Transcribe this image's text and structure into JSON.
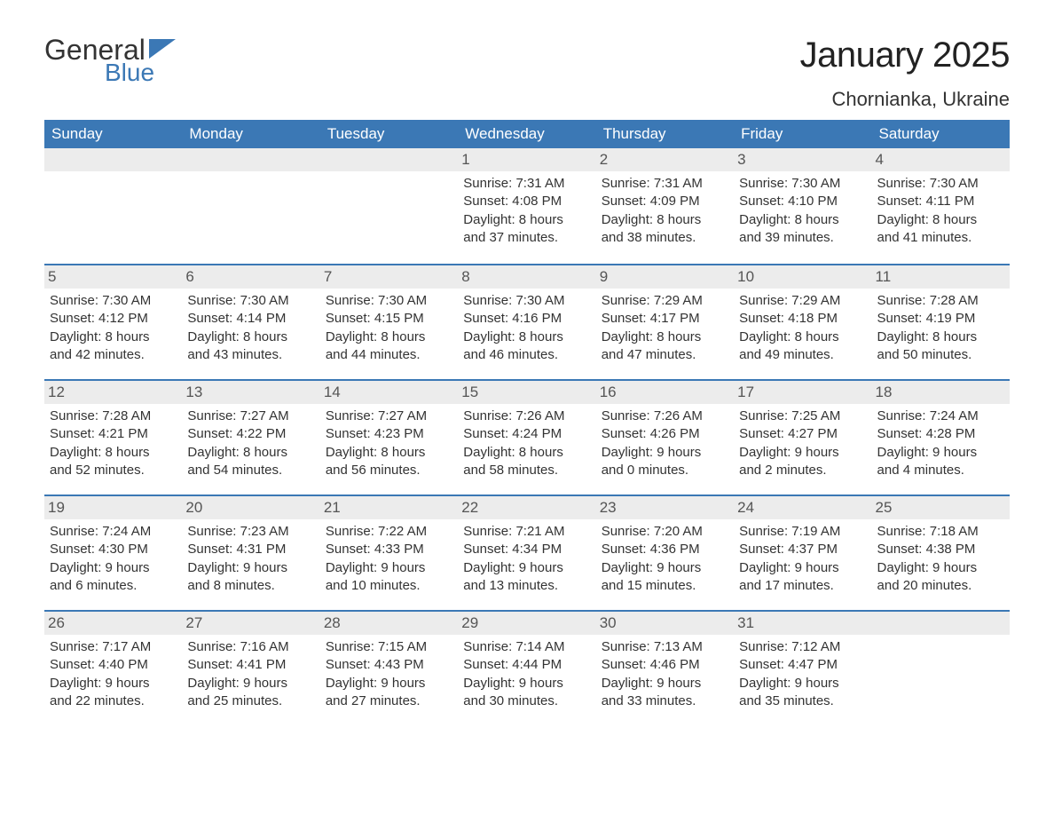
{
  "logo": {
    "word1": "General",
    "word2": "Blue"
  },
  "title": "January 2025",
  "location": "Chornianka, Ukraine",
  "colors": {
    "brand_blue": "#3b78b5",
    "header_bg": "#3b78b5",
    "text": "#333333",
    "daynum_bg": "#ececec",
    "background": "#ffffff"
  },
  "days_of_week": [
    "Sunday",
    "Monday",
    "Tuesday",
    "Wednesday",
    "Thursday",
    "Friday",
    "Saturday"
  ],
  "weeks": [
    [
      {
        "n": "",
        "sunrise": "",
        "sunset": "",
        "daylight1": "",
        "daylight2": ""
      },
      {
        "n": "",
        "sunrise": "",
        "sunset": "",
        "daylight1": "",
        "daylight2": ""
      },
      {
        "n": "",
        "sunrise": "",
        "sunset": "",
        "daylight1": "",
        "daylight2": ""
      },
      {
        "n": "1",
        "sunrise": "Sunrise: 7:31 AM",
        "sunset": "Sunset: 4:08 PM",
        "daylight1": "Daylight: 8 hours",
        "daylight2": "and 37 minutes."
      },
      {
        "n": "2",
        "sunrise": "Sunrise: 7:31 AM",
        "sunset": "Sunset: 4:09 PM",
        "daylight1": "Daylight: 8 hours",
        "daylight2": "and 38 minutes."
      },
      {
        "n": "3",
        "sunrise": "Sunrise: 7:30 AM",
        "sunset": "Sunset: 4:10 PM",
        "daylight1": "Daylight: 8 hours",
        "daylight2": "and 39 minutes."
      },
      {
        "n": "4",
        "sunrise": "Sunrise: 7:30 AM",
        "sunset": "Sunset: 4:11 PM",
        "daylight1": "Daylight: 8 hours",
        "daylight2": "and 41 minutes."
      }
    ],
    [
      {
        "n": "5",
        "sunrise": "Sunrise: 7:30 AM",
        "sunset": "Sunset: 4:12 PM",
        "daylight1": "Daylight: 8 hours",
        "daylight2": "and 42 minutes."
      },
      {
        "n": "6",
        "sunrise": "Sunrise: 7:30 AM",
        "sunset": "Sunset: 4:14 PM",
        "daylight1": "Daylight: 8 hours",
        "daylight2": "and 43 minutes."
      },
      {
        "n": "7",
        "sunrise": "Sunrise: 7:30 AM",
        "sunset": "Sunset: 4:15 PM",
        "daylight1": "Daylight: 8 hours",
        "daylight2": "and 44 minutes."
      },
      {
        "n": "8",
        "sunrise": "Sunrise: 7:30 AM",
        "sunset": "Sunset: 4:16 PM",
        "daylight1": "Daylight: 8 hours",
        "daylight2": "and 46 minutes."
      },
      {
        "n": "9",
        "sunrise": "Sunrise: 7:29 AM",
        "sunset": "Sunset: 4:17 PM",
        "daylight1": "Daylight: 8 hours",
        "daylight2": "and 47 minutes."
      },
      {
        "n": "10",
        "sunrise": "Sunrise: 7:29 AM",
        "sunset": "Sunset: 4:18 PM",
        "daylight1": "Daylight: 8 hours",
        "daylight2": "and 49 minutes."
      },
      {
        "n": "11",
        "sunrise": "Sunrise: 7:28 AM",
        "sunset": "Sunset: 4:19 PM",
        "daylight1": "Daylight: 8 hours",
        "daylight2": "and 50 minutes."
      }
    ],
    [
      {
        "n": "12",
        "sunrise": "Sunrise: 7:28 AM",
        "sunset": "Sunset: 4:21 PM",
        "daylight1": "Daylight: 8 hours",
        "daylight2": "and 52 minutes."
      },
      {
        "n": "13",
        "sunrise": "Sunrise: 7:27 AM",
        "sunset": "Sunset: 4:22 PM",
        "daylight1": "Daylight: 8 hours",
        "daylight2": "and 54 minutes."
      },
      {
        "n": "14",
        "sunrise": "Sunrise: 7:27 AM",
        "sunset": "Sunset: 4:23 PM",
        "daylight1": "Daylight: 8 hours",
        "daylight2": "and 56 minutes."
      },
      {
        "n": "15",
        "sunrise": "Sunrise: 7:26 AM",
        "sunset": "Sunset: 4:24 PM",
        "daylight1": "Daylight: 8 hours",
        "daylight2": "and 58 minutes."
      },
      {
        "n": "16",
        "sunrise": "Sunrise: 7:26 AM",
        "sunset": "Sunset: 4:26 PM",
        "daylight1": "Daylight: 9 hours",
        "daylight2": "and 0 minutes."
      },
      {
        "n": "17",
        "sunrise": "Sunrise: 7:25 AM",
        "sunset": "Sunset: 4:27 PM",
        "daylight1": "Daylight: 9 hours",
        "daylight2": "and 2 minutes."
      },
      {
        "n": "18",
        "sunrise": "Sunrise: 7:24 AM",
        "sunset": "Sunset: 4:28 PM",
        "daylight1": "Daylight: 9 hours",
        "daylight2": "and 4 minutes."
      }
    ],
    [
      {
        "n": "19",
        "sunrise": "Sunrise: 7:24 AM",
        "sunset": "Sunset: 4:30 PM",
        "daylight1": "Daylight: 9 hours",
        "daylight2": "and 6 minutes."
      },
      {
        "n": "20",
        "sunrise": "Sunrise: 7:23 AM",
        "sunset": "Sunset: 4:31 PM",
        "daylight1": "Daylight: 9 hours",
        "daylight2": "and 8 minutes."
      },
      {
        "n": "21",
        "sunrise": "Sunrise: 7:22 AM",
        "sunset": "Sunset: 4:33 PM",
        "daylight1": "Daylight: 9 hours",
        "daylight2": "and 10 minutes."
      },
      {
        "n": "22",
        "sunrise": "Sunrise: 7:21 AM",
        "sunset": "Sunset: 4:34 PM",
        "daylight1": "Daylight: 9 hours",
        "daylight2": "and 13 minutes."
      },
      {
        "n": "23",
        "sunrise": "Sunrise: 7:20 AM",
        "sunset": "Sunset: 4:36 PM",
        "daylight1": "Daylight: 9 hours",
        "daylight2": "and 15 minutes."
      },
      {
        "n": "24",
        "sunrise": "Sunrise: 7:19 AM",
        "sunset": "Sunset: 4:37 PM",
        "daylight1": "Daylight: 9 hours",
        "daylight2": "and 17 minutes."
      },
      {
        "n": "25",
        "sunrise": "Sunrise: 7:18 AM",
        "sunset": "Sunset: 4:38 PM",
        "daylight1": "Daylight: 9 hours",
        "daylight2": "and 20 minutes."
      }
    ],
    [
      {
        "n": "26",
        "sunrise": "Sunrise: 7:17 AM",
        "sunset": "Sunset: 4:40 PM",
        "daylight1": "Daylight: 9 hours",
        "daylight2": "and 22 minutes."
      },
      {
        "n": "27",
        "sunrise": "Sunrise: 7:16 AM",
        "sunset": "Sunset: 4:41 PM",
        "daylight1": "Daylight: 9 hours",
        "daylight2": "and 25 minutes."
      },
      {
        "n": "28",
        "sunrise": "Sunrise: 7:15 AM",
        "sunset": "Sunset: 4:43 PM",
        "daylight1": "Daylight: 9 hours",
        "daylight2": "and 27 minutes."
      },
      {
        "n": "29",
        "sunrise": "Sunrise: 7:14 AM",
        "sunset": "Sunset: 4:44 PM",
        "daylight1": "Daylight: 9 hours",
        "daylight2": "and 30 minutes."
      },
      {
        "n": "30",
        "sunrise": "Sunrise: 7:13 AM",
        "sunset": "Sunset: 4:46 PM",
        "daylight1": "Daylight: 9 hours",
        "daylight2": "and 33 minutes."
      },
      {
        "n": "31",
        "sunrise": "Sunrise: 7:12 AM",
        "sunset": "Sunset: 4:47 PM",
        "daylight1": "Daylight: 9 hours",
        "daylight2": "and 35 minutes."
      },
      {
        "n": "",
        "sunrise": "",
        "sunset": "",
        "daylight1": "",
        "daylight2": ""
      }
    ]
  ]
}
